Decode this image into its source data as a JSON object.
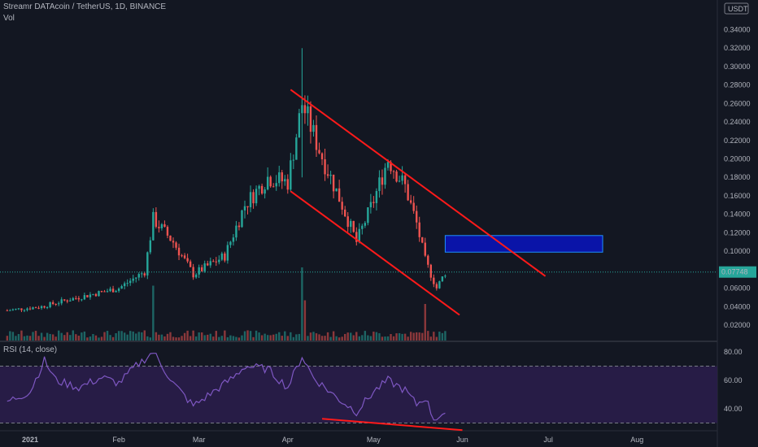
{
  "header": {
    "symbol": "Streamr DATAcoin / TetherUS, 1D, BINANCE",
    "volume_label": "Vol",
    "rsi_label": "RSI (14, close)"
  },
  "colors": {
    "background": "#131722",
    "up": "#26a69a",
    "down": "#ef5350",
    "annotation": "#ff1a1a",
    "zone_fill": "#0a14a8",
    "rsi_line": "#7e57c2",
    "rsi_band": "#2a1d4a"
  },
  "chart_data": [
    {
      "type": "candlestick",
      "title": "Streamr DATAcoin / TetherUS, 1D, BINANCE",
      "currency": "USDT",
      "last_price_label": "0.07748",
      "ylim": [
        0.0,
        0.36
      ],
      "y_ticks": [
        "0.34000",
        "0.32000",
        "0.30000",
        "0.28000",
        "0.26000",
        "0.24000",
        "0.22000",
        "0.20000",
        "0.18000",
        "0.16000",
        "0.14000",
        "0.12000",
        "0.10000",
        "0.08000",
        "0.06000",
        "0.04000",
        "0.02000"
      ],
      "x_ticks": [
        {
          "date": "2021-01-01",
          "label": "2021"
        },
        {
          "date": "2021-02-01",
          "label": "Feb"
        },
        {
          "date": "2021-03-01",
          "label": "Mar"
        },
        {
          "date": "2021-04-01",
          "label": "Apr"
        },
        {
          "date": "2021-05-01",
          "label": "May"
        },
        {
          "date": "2021-06-01",
          "label": "Jun"
        },
        {
          "date": "2021-07-01",
          "label": "Jul"
        },
        {
          "date": "2021-08-01",
          "label": "Aug"
        }
      ],
      "series": [
        {
          "date": "2020-12-24",
          "close": 0.036
        },
        {
          "date": "2021-01-05",
          "close": 0.04
        },
        {
          "date": "2021-01-15",
          "close": 0.048
        },
        {
          "date": "2021-01-25",
          "close": 0.055
        },
        {
          "date": "2021-02-01",
          "close": 0.06
        },
        {
          "date": "2021-02-10",
          "close": 0.078
        },
        {
          "date": "2021-02-13",
          "close": 0.135
        },
        {
          "date": "2021-02-20",
          "close": 0.11
        },
        {
          "date": "2021-02-27",
          "close": 0.075
        },
        {
          "date": "2021-03-10",
          "close": 0.095
        },
        {
          "date": "2021-03-17",
          "close": 0.15
        },
        {
          "date": "2021-03-25",
          "close": 0.18
        },
        {
          "date": "2021-04-01",
          "close": 0.175
        },
        {
          "date": "2021-04-06",
          "close": 0.26
        },
        {
          "date": "2021-04-12",
          "close": 0.21
        },
        {
          "date": "2021-04-20",
          "close": 0.15
        },
        {
          "date": "2021-04-25",
          "close": 0.11
        },
        {
          "date": "2021-05-01",
          "close": 0.155
        },
        {
          "date": "2021-05-06",
          "close": 0.2
        },
        {
          "date": "2021-05-12",
          "close": 0.17
        },
        {
          "date": "2021-05-16",
          "close": 0.13
        },
        {
          "date": "2021-05-19",
          "close": 0.09
        },
        {
          "date": "2021-05-23",
          "close": 0.06
        },
        {
          "date": "2021-05-26",
          "close": 0.077
        }
      ],
      "volume": [
        {
          "date": "2021-02-13",
          "value": 0.75
        },
        {
          "date": "2021-04-06",
          "value": 1.0
        },
        {
          "date": "2021-04-07",
          "value": 0.55
        },
        {
          "date": "2021-05-19",
          "value": 0.5
        }
      ],
      "annotations": {
        "channel_upper": [
          {
            "date": "2021-04-02",
            "price": 0.275
          },
          {
            "date": "2021-06-30",
            "price": 0.073
          }
        ],
        "channel_lower": [
          {
            "date": "2021-04-02",
            "price": 0.165
          },
          {
            "date": "2021-05-31",
            "price": 0.031
          }
        ],
        "target_zone": {
          "from": "2021-05-26",
          "to": "2021-07-20",
          "low": 0.099,
          "high": 0.117
        }
      }
    },
    {
      "type": "line",
      "title": "RSI (14, close)",
      "ylim": [
        25,
        85
      ],
      "y_ticks": [
        "80.00",
        "60.00",
        "40.00"
      ],
      "bands": [
        70,
        30
      ],
      "series": [
        {
          "name": "RSI",
          "points": [
            {
              "date": "2020-12-24",
              "value": 45
            },
            {
              "date": "2021-01-01",
              "value": 52
            },
            {
              "date": "2021-01-06",
              "value": 74
            },
            {
              "date": "2021-01-10",
              "value": 60
            },
            {
              "date": "2021-01-18",
              "value": 55
            },
            {
              "date": "2021-01-26",
              "value": 62
            },
            {
              "date": "2021-02-01",
              "value": 58
            },
            {
              "date": "2021-02-07",
              "value": 70
            },
            {
              "date": "2021-02-13",
              "value": 80
            },
            {
              "date": "2021-02-20",
              "value": 58
            },
            {
              "date": "2021-02-27",
              "value": 42
            },
            {
              "date": "2021-03-06",
              "value": 52
            },
            {
              "date": "2021-03-13",
              "value": 62
            },
            {
              "date": "2021-03-17",
              "value": 70
            },
            {
              "date": "2021-03-25",
              "value": 68
            },
            {
              "date": "2021-04-01",
              "value": 55
            },
            {
              "date": "2021-04-06",
              "value": 77
            },
            {
              "date": "2021-04-10",
              "value": 62
            },
            {
              "date": "2021-04-18",
              "value": 48
            },
            {
              "date": "2021-04-25",
              "value": 38
            },
            {
              "date": "2021-05-01",
              "value": 52
            },
            {
              "date": "2021-05-06",
              "value": 60
            },
            {
              "date": "2021-05-12",
              "value": 53
            },
            {
              "date": "2021-05-16",
              "value": 43
            },
            {
              "date": "2021-05-19",
              "value": 48
            },
            {
              "date": "2021-05-22",
              "value": 33
            },
            {
              "date": "2021-05-26",
              "value": 37
            }
          ]
        }
      ],
      "annotations": {
        "divergence_line": [
          {
            "date": "2021-04-13",
            "value": 33
          },
          {
            "date": "2021-06-01",
            "value": 25
          }
        ]
      }
    }
  ]
}
